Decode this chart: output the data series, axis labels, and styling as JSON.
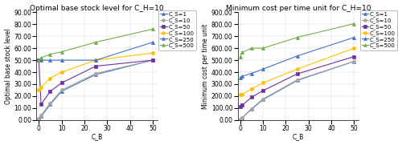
{
  "x": [
    0,
    1,
    5,
    10,
    25,
    50
  ],
  "left_title": "Optimal base stock level for C_H=10",
  "right_title": "Minimum cost per time unit for C_H=10",
  "xlabel": "C_B",
  "left_ylabel": "Optimal base stock level",
  "right_ylabel": "Minimum cost per time unit",
  "series_labels": [
    "C_S=1",
    "C_S=10",
    "C_S=50",
    "C_S=100",
    "C_S=250",
    "C_S=500"
  ],
  "series_colors": [
    "#4472c4",
    "#a5a5a5",
    "#7030a0",
    "#ffc000",
    "#4472c4",
    "#70ad47"
  ],
  "series_linestyles": [
    "-",
    "-",
    "-",
    "-",
    "-",
    "-"
  ],
  "series_markers": [
    "^",
    "o",
    "s",
    "o",
    "^",
    "^"
  ],
  "series_markerfacecolors": [
    "#4472c4",
    "#a5a5a5",
    "#7030a0",
    "#ffc000",
    "#4472c4",
    "#70ad47"
  ],
  "left_data": [
    [
      1.0,
      3.0,
      13.0,
      24.0,
      38.0,
      50.0
    ],
    [
      1.0,
      4.0,
      14.0,
      25.0,
      39.0,
      50.0
    ],
    [
      50.0,
      13.0,
      24.0,
      31.0,
      45.0,
      50.0
    ],
    [
      25.0,
      27.0,
      35.0,
      40.0,
      50.0,
      56.0
    ],
    [
      50.0,
      50.0,
      50.0,
      50.0,
      50.0,
      65.0
    ],
    [
      50.0,
      52.0,
      55.0,
      57.0,
      65.0,
      76.0
    ]
  ],
  "right_data": [
    [
      5.0,
      20.0,
      90.0,
      170.0,
      330.0,
      490.0
    ],
    [
      5.0,
      22.0,
      95.0,
      175.0,
      335.0,
      490.0
    ],
    [
      115.0,
      125.0,
      190.0,
      245.0,
      385.0,
      530.0
    ],
    [
      210.0,
      215.0,
      260.0,
      310.0,
      425.0,
      600.0
    ],
    [
      355.0,
      365.0,
      390.0,
      425.0,
      535.0,
      690.0
    ],
    [
      530.0,
      565.0,
      600.0,
      600.0,
      690.0,
      805.0
    ]
  ],
  "left_ylim": [
    0.0,
    90.0
  ],
  "left_yticks": [
    0.0,
    10.0,
    20.0,
    30.0,
    40.0,
    50.0,
    60.0,
    70.0,
    80.0,
    90.0
  ],
  "right_ylim": [
    0.0,
    900.0
  ],
  "right_yticks": [
    0.0,
    100.0,
    200.0,
    300.0,
    400.0,
    500.0,
    600.0,
    700.0,
    800.0,
    900.0
  ],
  "xticks": [
    0,
    10,
    20,
    30,
    40,
    50
  ],
  "xlim": [
    -1,
    52
  ],
  "grid": true,
  "background_color": "#ffffff",
  "legend_fontsize": 5.0,
  "tick_fontsize": 5.5,
  "title_fontsize": 6.5,
  "label_fontsize": 5.5,
  "linewidth": 0.8,
  "markersize": 3.0
}
